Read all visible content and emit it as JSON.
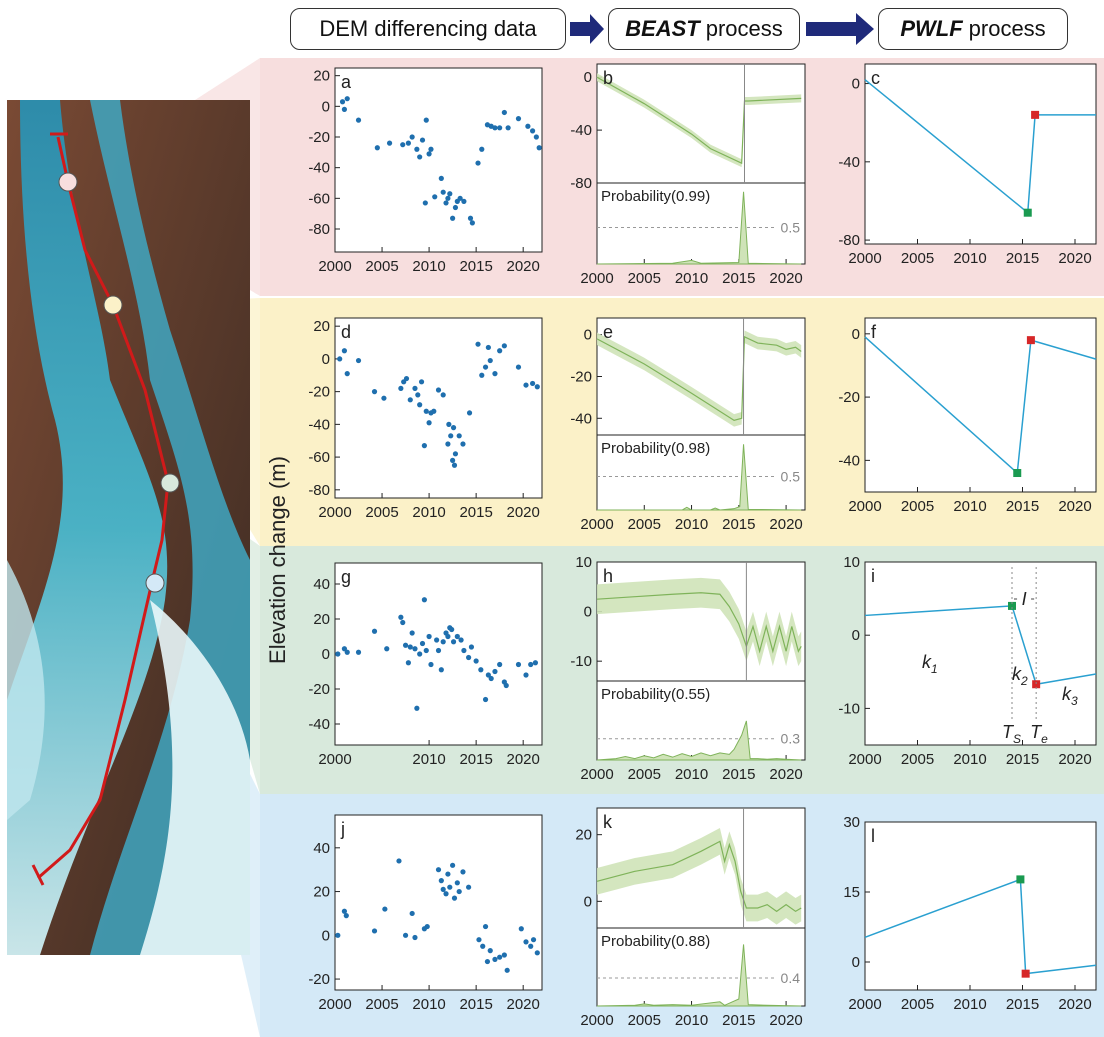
{
  "header": {
    "step1": "DEM differencing data",
    "step2_bold": "BEAST",
    "step2_rest": "process",
    "step3_bold": "PWLF",
    "step3_rest": "process"
  },
  "ylabel": "Elevation change (m)",
  "colors": {
    "dots": "#1f6fae",
    "pwlf_line": "#2aa0d0",
    "beast_fill": "#cfe3b8",
    "beast_line": "#7fb35a",
    "start_marker": "#1a9a50",
    "end_marker": "#d62728",
    "track": "#d11a1a",
    "band_pink": "#f7dede",
    "band_yellow": "#fbf1c8",
    "band_green": "#d8e9dc",
    "band_blue": "#d4e9f7"
  },
  "chart_data": [
    {
      "panel": "a",
      "type": "scatter",
      "ylim": [
        -95,
        25
      ],
      "yticks": [
        20,
        0,
        -20,
        -40,
        -60,
        -80
      ],
      "xticks": [
        2000,
        2005,
        2010,
        2015,
        2020
      ],
      "points": [
        [
          2000.8,
          3
        ],
        [
          2001.0,
          -2
        ],
        [
          2001.3,
          5
        ],
        [
          2002.5,
          -9
        ],
        [
          2004.5,
          -27
        ],
        [
          2005.8,
          -24
        ],
        [
          2007.2,
          -25
        ],
        [
          2007.8,
          -24
        ],
        [
          2008.2,
          -20
        ],
        [
          2008.7,
          -28
        ],
        [
          2009.0,
          -33
        ],
        [
          2009.3,
          -22
        ],
        [
          2009.6,
          -63
        ],
        [
          2009.7,
          -9
        ],
        [
          2010.0,
          -31
        ],
        [
          2010.2,
          -28
        ],
        [
          2010.6,
          -59
        ],
        [
          2011.3,
          -47
        ],
        [
          2011.5,
          -56
        ],
        [
          2011.8,
          -63
        ],
        [
          2012.0,
          -60
        ],
        [
          2012.2,
          -57
        ],
        [
          2012.5,
          -73
        ],
        [
          2012.8,
          -66
        ],
        [
          2013.0,
          -62
        ],
        [
          2013.3,
          -60
        ],
        [
          2013.7,
          -62
        ],
        [
          2014.4,
          -73
        ],
        [
          2014.6,
          -76
        ],
        [
          2015.2,
          -37
        ],
        [
          2015.6,
          -28
        ],
        [
          2016.2,
          -12
        ],
        [
          2016.6,
          -13
        ],
        [
          2017.0,
          -14
        ],
        [
          2017.5,
          -14
        ],
        [
          2018.0,
          -4
        ],
        [
          2018.4,
          -14
        ],
        [
          2019.5,
          -8
        ],
        [
          2020.5,
          -13
        ],
        [
          2021.0,
          -16
        ],
        [
          2021.4,
          -20
        ],
        [
          2021.7,
          -27
        ]
      ]
    },
    {
      "panel": "b",
      "type": "area",
      "ylim": [
        -80,
        10
      ],
      "yticks": [
        0,
        -40,
        -80
      ],
      "xticks": [
        2000,
        2005,
        2010,
        2015,
        2020
      ],
      "changepoint": 2015.6,
      "probability_label": "Probability(0.99)",
      "threshold_label": "0.5",
      "threshold": 0.5,
      "trend_x": [
        2000,
        2005,
        2010,
        2012,
        2015.3,
        2015.6,
        2016,
        2021.6
      ],
      "trend_y": [
        0,
        -20,
        -43,
        -54,
        -65,
        -18,
        -18,
        -16
      ],
      "band": 3,
      "prob_x": [
        2000,
        2008,
        2010,
        2011,
        2015.0,
        2015.5,
        2016.0,
        2021.6
      ],
      "prob_y": [
        0,
        0.01,
        0.05,
        0.01,
        0.02,
        0.99,
        0.01,
        0
      ]
    },
    {
      "panel": "c",
      "type": "line",
      "ylim": [
        -82,
        10
      ],
      "yticks": [
        0,
        -40,
        -80
      ],
      "xticks": [
        2000,
        2005,
        2010,
        2015,
        2020
      ],
      "line_x": [
        2000,
        2015.5,
        2016.2,
        2022
      ],
      "line_y": [
        2,
        -66,
        -16,
        -16
      ],
      "start_point": [
        2015.5,
        -66
      ],
      "end_point": [
        2016.2,
        -16
      ]
    },
    {
      "panel": "d",
      "type": "scatter",
      "ylim": [
        -85,
        25
      ],
      "yticks": [
        20,
        0,
        -20,
        -40,
        -60,
        -80
      ],
      "xticks": [
        2000,
        2005,
        2010,
        2015,
        2020
      ],
      "points": [
        [
          2000.5,
          0
        ],
        [
          2001.0,
          5
        ],
        [
          2001.3,
          -9
        ],
        [
          2002.5,
          -1
        ],
        [
          2004.2,
          -20
        ],
        [
          2005.2,
          -24
        ],
        [
          2007.0,
          -18
        ],
        [
          2007.3,
          -14
        ],
        [
          2007.6,
          -12
        ],
        [
          2008.0,
          -25
        ],
        [
          2008.5,
          -18
        ],
        [
          2008.8,
          -22
        ],
        [
          2009.0,
          -28
        ],
        [
          2009.2,
          -14
        ],
        [
          2009.5,
          -53
        ],
        [
          2009.7,
          -32
        ],
        [
          2010.0,
          -39
        ],
        [
          2010.2,
          -33
        ],
        [
          2010.5,
          -32
        ],
        [
          2011.0,
          -19
        ],
        [
          2011.5,
          -22
        ],
        [
          2012.0,
          -52
        ],
        [
          2012.1,
          -40
        ],
        [
          2012.3,
          -47
        ],
        [
          2012.5,
          -62
        ],
        [
          2012.6,
          -42
        ],
        [
          2012.7,
          -65
        ],
        [
          2012.8,
          -58
        ],
        [
          2013.2,
          -47
        ],
        [
          2013.6,
          -52
        ],
        [
          2014.3,
          -33
        ],
        [
          2015.2,
          9
        ],
        [
          2015.6,
          -10
        ],
        [
          2016.0,
          -5
        ],
        [
          2016.3,
          7
        ],
        [
          2016.5,
          -1
        ],
        [
          2017.0,
          -9
        ],
        [
          2017.5,
          5
        ],
        [
          2018.0,
          8
        ],
        [
          2019.5,
          -5
        ],
        [
          2020.3,
          -16
        ],
        [
          2021.0,
          -15
        ],
        [
          2021.5,
          -17
        ]
      ]
    },
    {
      "panel": "e",
      "type": "area",
      "ylim": [
        -48,
        8
      ],
      "yticks": [
        0,
        -20,
        -40
      ],
      "xticks": [
        2000,
        2005,
        2010,
        2015,
        2020
      ],
      "changepoint": 2015.5,
      "probability_label": "Probability(0.98)",
      "threshold_label": "0.5",
      "threshold": 0.5,
      "trend_x": [
        2000,
        2005,
        2010,
        2014.5,
        2015.3,
        2015.6,
        2017,
        2019,
        2020,
        2021,
        2021.6
      ],
      "trend_y": [
        -2,
        -14,
        -28,
        -41,
        -40,
        -1,
        -4,
        -5,
        -7,
        -6,
        -8
      ],
      "band": 3,
      "prob_x": [
        2000,
        2009,
        2009.5,
        2010,
        2012,
        2012.5,
        2013,
        2014.5,
        2015.1,
        2015.5,
        2016.0,
        2021.6
      ],
      "prob_y": [
        0,
        0,
        0.04,
        0,
        0,
        0.03,
        0,
        0.02,
        0.05,
        0.98,
        0.01,
        0
      ]
    },
    {
      "panel": "f",
      "type": "line",
      "ylim": [
        -50,
        5
      ],
      "yticks": [
        0,
        -20,
        -40
      ],
      "xticks": [
        2000,
        2005,
        2010,
        2015,
        2020
      ],
      "line_x": [
        2000,
        2014.5,
        2015.8,
        2022
      ],
      "line_y": [
        -1,
        -44,
        -2,
        -8
      ],
      "start_point": [
        2014.5,
        -44
      ],
      "end_point": [
        2015.8,
        -2
      ]
    },
    {
      "panel": "g",
      "type": "scatter",
      "ylim": [
        -52,
        52
      ],
      "yticks": [
        40,
        20,
        0,
        -20,
        -40
      ],
      "xticks": [
        2000,
        2010,
        2015,
        2020
      ],
      "xtick_labels": [
        "2000",
        "2010",
        "2015",
        "2020"
      ],
      "points": [
        [
          2000.3,
          0
        ],
        [
          2001.0,
          3
        ],
        [
          2001.3,
          1
        ],
        [
          2002.5,
          1
        ],
        [
          2004.2,
          13
        ],
        [
          2005.5,
          3
        ],
        [
          2007.0,
          21
        ],
        [
          2007.2,
          18
        ],
        [
          2007.5,
          5
        ],
        [
          2007.8,
          -5
        ],
        [
          2008.0,
          4
        ],
        [
          2008.2,
          12
        ],
        [
          2008.5,
          3
        ],
        [
          2008.7,
          -31
        ],
        [
          2009.0,
          0
        ],
        [
          2009.3,
          6
        ],
        [
          2009.5,
          31
        ],
        [
          2009.7,
          2
        ],
        [
          2010.0,
          10
        ],
        [
          2010.2,
          -6
        ],
        [
          2010.8,
          8
        ],
        [
          2011.0,
          2
        ],
        [
          2011.3,
          -9
        ],
        [
          2011.5,
          7
        ],
        [
          2011.8,
          12
        ],
        [
          2012.0,
          10
        ],
        [
          2012.2,
          15
        ],
        [
          2012.4,
          14
        ],
        [
          2012.6,
          7
        ],
        [
          2013.0,
          10
        ],
        [
          2013.4,
          8
        ],
        [
          2013.7,
          2
        ],
        [
          2014.2,
          -2
        ],
        [
          2014.5,
          4
        ],
        [
          2015.0,
          -4
        ],
        [
          2015.5,
          -9
        ],
        [
          2016.0,
          -26
        ],
        [
          2016.3,
          -12
        ],
        [
          2016.6,
          -14
        ],
        [
          2017.0,
          -10
        ],
        [
          2017.5,
          -6
        ],
        [
          2018.0,
          -16
        ],
        [
          2018.2,
          -18
        ],
        [
          2019.5,
          -6
        ],
        [
          2020.3,
          -12
        ],
        [
          2020.8,
          -6
        ],
        [
          2021.3,
          -5
        ]
      ]
    },
    {
      "panel": "h",
      "type": "area",
      "ylim": [
        -14,
        10
      ],
      "yticks": [
        10,
        0,
        -10
      ],
      "xticks": [
        2000,
        2005,
        2010,
        2015,
        2020
      ],
      "changepoint": 2015.8,
      "probability_label": "Probability(0.55)",
      "threshold_label": "0.3",
      "threshold": 0.3,
      "trend_x": [
        2000,
        2004,
        2008,
        2011,
        2013,
        2014,
        2015,
        2015.8,
        2016.5,
        2017.2,
        2017.9,
        2018.6,
        2019.3,
        2020,
        2020.6,
        2021.3,
        2021.6
      ],
      "trend_y": [
        2.5,
        3,
        3.5,
        3.8,
        3.5,
        1.0,
        -2.5,
        -7,
        -3,
        -8,
        -3,
        -8,
        -3,
        -8,
        -3,
        -8,
        -7
      ],
      "band": 3,
      "prob_x": [
        2000,
        2002,
        2003,
        2004,
        2005,
        2006,
        2007,
        2008,
        2009,
        2010,
        2011,
        2012,
        2013,
        2014,
        2014.5,
        2015.3,
        2015.8,
        2016.2,
        2017,
        2018,
        2019,
        2020,
        2021.6
      ],
      "prob_y": [
        0,
        0.02,
        0.05,
        0.02,
        0.06,
        0.03,
        0.08,
        0.04,
        0.09,
        0.05,
        0.1,
        0.06,
        0.1,
        0.08,
        0.15,
        0.35,
        0.55,
        0.02,
        0.02,
        0.01,
        0.02,
        0.01,
        0
      ]
    },
    {
      "panel": "i",
      "type": "line",
      "ylim": [
        -15,
        10
      ],
      "yticks": [
        10,
        0,
        -10
      ],
      "xticks": [
        2000,
        2005,
        2010,
        2015,
        2020
      ],
      "line_x": [
        2000,
        2014,
        2016.3,
        2022
      ],
      "line_y": [
        2.7,
        4.0,
        -6.7,
        -5.3
      ],
      "start_point": [
        2014,
        4.0
      ],
      "end_point": [
        2016.3,
        -6.7
      ],
      "annotations": {
        "k1": "k",
        "k1_sub": "1",
        "k2": "k",
        "k2_sub": "2",
        "k3": "k",
        "k3_sub": "3",
        "Ts": "T",
        "Ts_sub": "S",
        "Te": "T",
        "Te_sub": "e",
        "interval": "I"
      }
    },
    {
      "panel": "j",
      "type": "scatter",
      "ylim": [
        -25,
        55
      ],
      "yticks": [
        40,
        20,
        0,
        -20
      ],
      "xticks": [
        2000,
        2005,
        2010,
        2015,
        2020
      ],
      "points": [
        [
          2000.3,
          0
        ],
        [
          2001.0,
          11
        ],
        [
          2001.2,
          9
        ],
        [
          2004.2,
          2
        ],
        [
          2005.3,
          12
        ],
        [
          2006.8,
          34
        ],
        [
          2007.5,
          0
        ],
        [
          2008.2,
          10
        ],
        [
          2008.5,
          -1
        ],
        [
          2009.5,
          3
        ],
        [
          2009.8,
          4
        ],
        [
          2011.0,
          30
        ],
        [
          2011.3,
          25
        ],
        [
          2011.5,
          21
        ],
        [
          2011.8,
          19
        ],
        [
          2012.0,
          28
        ],
        [
          2012.2,
          22
        ],
        [
          2012.5,
          32
        ],
        [
          2012.7,
          17
        ],
        [
          2013.0,
          24
        ],
        [
          2013.2,
          20
        ],
        [
          2013.6,
          29
        ],
        [
          2014.2,
          22
        ],
        [
          2015.3,
          -2
        ],
        [
          2015.7,
          -5
        ],
        [
          2016.0,
          4
        ],
        [
          2016.2,
          -12
        ],
        [
          2016.5,
          -7
        ],
        [
          2017.0,
          -11
        ],
        [
          2017.5,
          -10
        ],
        [
          2018.0,
          -9
        ],
        [
          2018.3,
          -16
        ],
        [
          2019.8,
          3
        ],
        [
          2020.3,
          -3
        ],
        [
          2020.8,
          -5
        ],
        [
          2021.1,
          -2
        ],
        [
          2021.5,
          -8
        ]
      ]
    },
    {
      "panel": "k",
      "type": "area",
      "ylim": [
        -8,
        28
      ],
      "yticks": [
        20,
        0
      ],
      "xticks": [
        2000,
        2005,
        2010,
        2015,
        2020
      ],
      "changepoint": 2015.5,
      "probability_label": "Probability(0.88)",
      "threshold_label": "0.4",
      "threshold": 0.4,
      "trend_x": [
        2000,
        2004,
        2008,
        2011,
        2013,
        2013.5,
        2014,
        2014.6,
        2015.2,
        2015.8,
        2017,
        2018,
        2019,
        2020,
        2021,
        2021.6
      ],
      "trend_y": [
        6,
        9,
        11,
        15,
        18,
        12,
        17,
        12,
        3,
        -2,
        -2,
        -1,
        -3,
        -1,
        -3,
        -2
      ],
      "band": 4,
      "prob_x": [
        2000,
        2004,
        2005,
        2006,
        2008,
        2010,
        2013,
        2013.5,
        2014,
        2015.0,
        2015.5,
        2016.0,
        2018,
        2021.6
      ],
      "prob_y": [
        0,
        0.01,
        0.03,
        0.01,
        0.02,
        0.01,
        0.06,
        0.01,
        0.04,
        0.1,
        0.88,
        0.02,
        0.01,
        0
      ]
    },
    {
      "panel": "l",
      "type": "line",
      "ylim": [
        -6,
        30
      ],
      "yticks": [
        30,
        15,
        0
      ],
      "xticks": [
        2000,
        2005,
        2010,
        2015,
        2020
      ],
      "line_x": [
        2000,
        2014.8,
        2015.3,
        2022
      ],
      "line_y": [
        5.3,
        17.7,
        -2.5,
        -0.7
      ],
      "start_point": [
        2014.8,
        17.7
      ],
      "end_point": [
        2015.3,
        -2.5
      ]
    }
  ]
}
